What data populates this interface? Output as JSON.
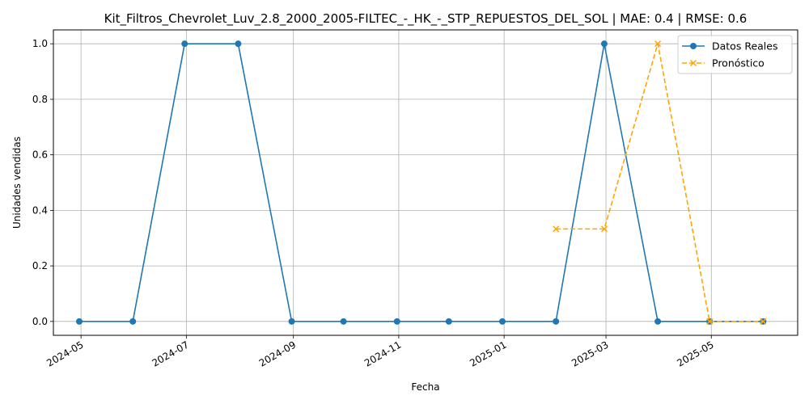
{
  "chart_data": {
    "type": "line",
    "title": "Kit_Filtros_Chevrolet_Luv_2.8_2000_2005-FILTEC_-_HK_-_STP_REPUESTOS_DEL_SOL | MAE: 0.4 | RMSE: 0.6",
    "xlabel": "Fecha",
    "ylabel": "Unidades vendidas",
    "ylim": [
      -0.05,
      1.05
    ],
    "yticks": [
      0.0,
      0.2,
      0.4,
      0.6,
      0.8,
      1.0
    ],
    "ytick_labels": [
      "0.0",
      "0.2",
      "0.4",
      "0.6",
      "0.8",
      "1.0"
    ],
    "xlim": [
      "2024-04-15",
      "2025-06-20"
    ],
    "xticks": [
      "2024-05-01",
      "2024-07-01",
      "2024-09-01",
      "2024-11-01",
      "2025-01-01",
      "2025-03-01",
      "2025-05-01"
    ],
    "xtick_labels": [
      "2024-05",
      "2024-07",
      "2024-09",
      "2024-11",
      "2025-01",
      "2025-03",
      "2025-05"
    ],
    "grid": true,
    "legend_position": "top-right",
    "series": [
      {
        "name": "Datos Reales",
        "color": "#1f77b4",
        "style": "solid",
        "marker": "circle",
        "x": [
          "2024-04-30",
          "2024-05-31",
          "2024-06-30",
          "2024-07-31",
          "2024-08-31",
          "2024-09-30",
          "2024-10-31",
          "2024-11-30",
          "2024-12-31",
          "2025-01-31",
          "2025-02-28",
          "2025-03-31",
          "2025-04-30",
          "2025-05-31"
        ],
        "values": [
          0,
          0,
          1,
          1,
          0,
          0,
          0,
          0,
          0,
          0,
          1,
          0,
          0,
          0
        ]
      },
      {
        "name": "Pronóstico",
        "color": "#ffa500",
        "style": "dashed",
        "marker": "x",
        "x": [
          "2025-01-31",
          "2025-02-28",
          "2025-03-31",
          "2025-04-30",
          "2025-05-31"
        ],
        "values": [
          0.333,
          0.333,
          1.0,
          0,
          0
        ]
      }
    ]
  }
}
